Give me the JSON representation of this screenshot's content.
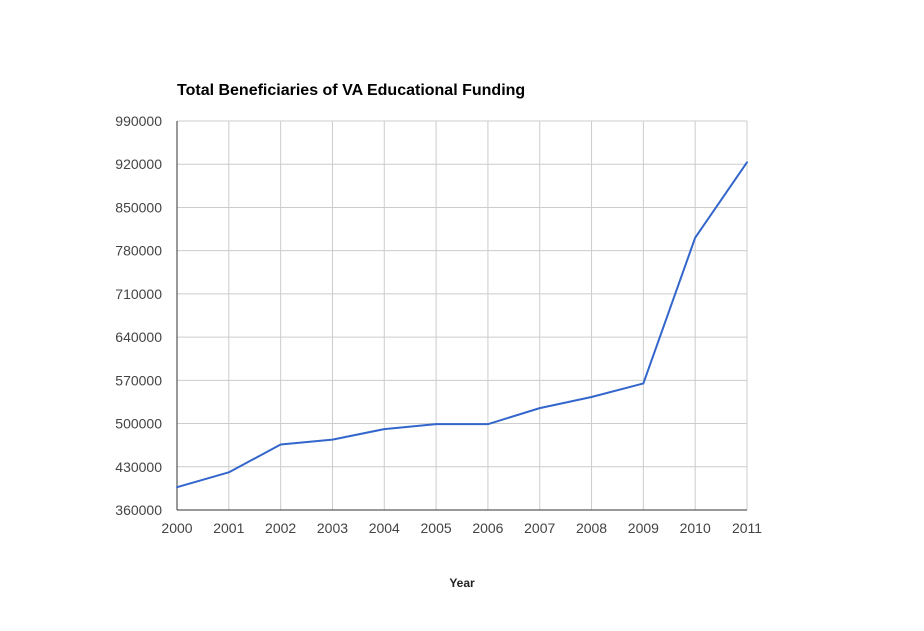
{
  "chart_data": {
    "type": "line",
    "title": "Total Beneficiaries of VA Educational Funding",
    "xlabel": "Year",
    "ylabel": "",
    "categories": [
      "2000",
      "2001",
      "2002",
      "2003",
      "2004",
      "2005",
      "2006",
      "2007",
      "2008",
      "2009",
      "2010",
      "2011"
    ],
    "series": [
      {
        "values": [
          397000,
          421000,
          466000,
          474000,
          491000,
          499000,
          499000,
          525000,
          543000,
          565000,
          801000,
          923000
        ]
      }
    ],
    "y_ticks": [
      "990000",
      "920000",
      "850000",
      "780000",
      "710000",
      "640000",
      "570000",
      "500000",
      "430000",
      "360000"
    ],
    "ylim": [
      360000,
      990000
    ],
    "grid": true,
    "legend": "none",
    "colors": {
      "series": "#3366cc",
      "grid": "#cccccc",
      "axis": "#333333"
    }
  }
}
